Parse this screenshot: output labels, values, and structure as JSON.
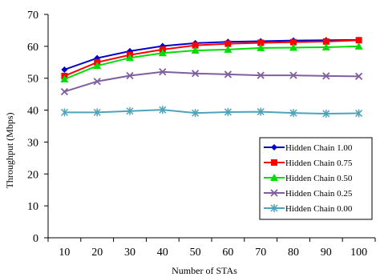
{
  "chart_data": {
    "type": "line",
    "xlabel": "Number of STAs",
    "ylabel": "Throughput (Mbps)",
    "x": [
      10,
      20,
      30,
      40,
      50,
      60,
      70,
      80,
      90,
      100
    ],
    "ylim": [
      0,
      70
    ],
    "yticks": [
      0,
      10,
      20,
      30,
      40,
      50,
      60,
      70
    ],
    "grid": false,
    "legend_position": "right",
    "series": [
      {
        "name": "Hidden Chain 1.00",
        "color": "#0000cc",
        "marker": "diamond",
        "values": [
          52.7,
          56.3,
          58.5,
          60.1,
          61.0,
          61.4,
          61.6,
          61.8,
          61.9,
          62.0
        ]
      },
      {
        "name": "Hidden Chain 0.75",
        "color": "#ff0000",
        "marker": "square",
        "values": [
          50.7,
          55.0,
          57.3,
          59.0,
          60.3,
          60.8,
          61.1,
          61.3,
          61.5,
          61.9
        ]
      },
      {
        "name": "Hidden Chain 0.50",
        "color": "#00dd00",
        "marker": "triangle",
        "values": [
          49.7,
          53.9,
          56.4,
          57.9,
          58.7,
          59.0,
          59.5,
          59.6,
          59.7,
          60.0
        ]
      },
      {
        "name": "Hidden Chain 0.25",
        "color": "#7f5f9f",
        "marker": "x",
        "values": [
          45.8,
          49.0,
          50.8,
          52.0,
          51.5,
          51.2,
          50.9,
          50.9,
          50.7,
          50.6
        ]
      },
      {
        "name": "Hidden Chain 0.00",
        "color": "#4fa3b8",
        "marker": "asterisk",
        "values": [
          39.3,
          39.3,
          39.7,
          40.1,
          39.1,
          39.4,
          39.5,
          39.1,
          38.9,
          39.0
        ]
      }
    ]
  }
}
